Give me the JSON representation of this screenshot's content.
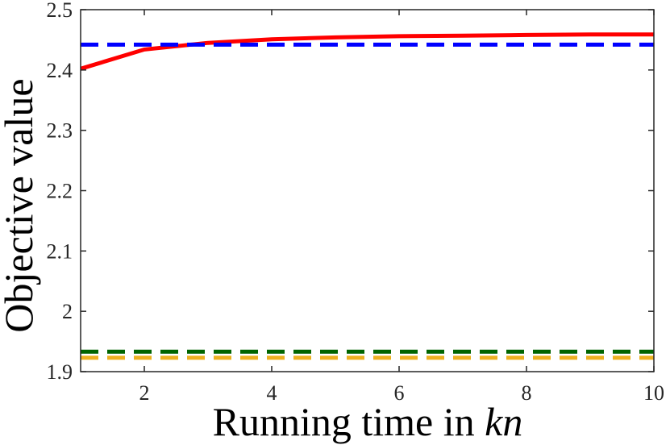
{
  "chart_data": {
    "type": "line",
    "xlabel": "Running time in ",
    "xlabel_italic": "kn",
    "ylabel": "Objective value",
    "xlim": [
      1,
      10
    ],
    "ylim": [
      1.9,
      2.5
    ],
    "xticks": [
      2,
      4,
      6,
      8,
      10
    ],
    "yticks": [
      1.9,
      2.0,
      2.1,
      2.2,
      2.3,
      2.4,
      2.5
    ],
    "ytick_labels": [
      "1.9",
      "2",
      "2.1",
      "2.2",
      "2.3",
      "2.4",
      "2.5"
    ],
    "grid": false,
    "series": [
      {
        "style": "solid",
        "color": "#ff0000",
        "x": [
          1,
          2,
          3,
          4,
          5,
          6,
          7,
          8,
          9,
          10
        ],
        "values": [
          2.402,
          2.434,
          2.445,
          2.451,
          2.454,
          2.456,
          2.457,
          2.458,
          2.459,
          2.459
        ]
      },
      {
        "style": "dashed",
        "color": "#0000ff",
        "x": [
          1,
          10
        ],
        "values": [
          2.442,
          2.442
        ]
      },
      {
        "style": "dashed",
        "color": "#006400",
        "x": [
          1,
          10
        ],
        "values": [
          1.933,
          1.933
        ]
      },
      {
        "style": "dashed",
        "color": "#edb120",
        "x": [
          1,
          10
        ],
        "values": [
          1.923,
          1.923
        ]
      }
    ]
  }
}
